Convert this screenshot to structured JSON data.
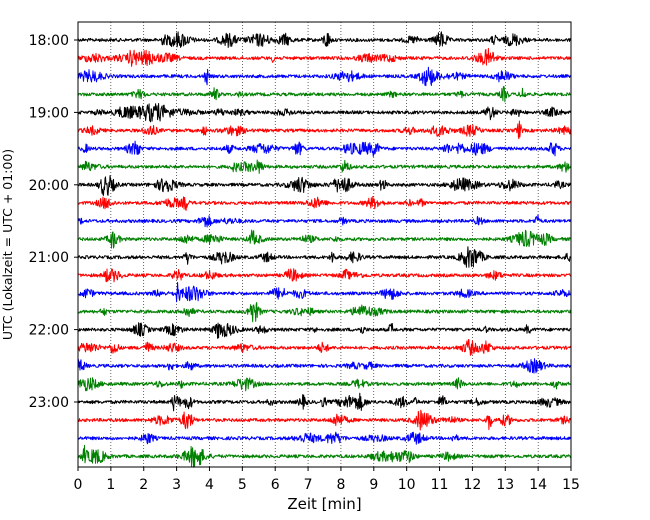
{
  "chart_data": {
    "type": "line",
    "title": "",
    "xlabel": "Zeit  [min]",
    "ylabel": "UTC (Lokalzeit = UTC + 01:00)",
    "xlim": [
      0,
      15
    ],
    "x_ticks": [
      "0",
      "1",
      "2",
      "3",
      "4",
      "5",
      "6",
      "7",
      "8",
      "9",
      "10",
      "11",
      "12",
      "13",
      "14",
      "15"
    ],
    "y_tick_labels": [
      "18:00",
      "19:00",
      "20:00",
      "21:00",
      "22:00",
      "23:00"
    ],
    "grid": "vertical-dotted",
    "series_colors": [
      "#000000",
      "#ff0000",
      "#0000ff",
      "#008000"
    ],
    "rows": [
      {
        "start": "18:00",
        "color": "#000000"
      },
      {
        "start": "18:15",
        "color": "#ff0000"
      },
      {
        "start": "18:30",
        "color": "#0000ff"
      },
      {
        "start": "18:45",
        "color": "#008000"
      },
      {
        "start": "19:00",
        "color": "#000000"
      },
      {
        "start": "19:15",
        "color": "#ff0000"
      },
      {
        "start": "19:30",
        "color": "#0000ff"
      },
      {
        "start": "19:45",
        "color": "#008000"
      },
      {
        "start": "20:00",
        "color": "#000000"
      },
      {
        "start": "20:15",
        "color": "#ff0000"
      },
      {
        "start": "20:30",
        "color": "#0000ff"
      },
      {
        "start": "20:45",
        "color": "#008000"
      },
      {
        "start": "21:00",
        "color": "#000000"
      },
      {
        "start": "21:15",
        "color": "#ff0000"
      },
      {
        "start": "21:30",
        "color": "#0000ff"
      },
      {
        "start": "21:45",
        "color": "#008000"
      },
      {
        "start": "22:00",
        "color": "#000000"
      },
      {
        "start": "22:15",
        "color": "#ff0000"
      },
      {
        "start": "22:30",
        "color": "#0000ff"
      },
      {
        "start": "22:45",
        "color": "#008000"
      },
      {
        "start": "23:00",
        "color": "#000000"
      },
      {
        "start": "23:15",
        "color": "#ff0000"
      },
      {
        "start": "23:30",
        "color": "#0000ff"
      },
      {
        "start": "23:45",
        "color": "#008000"
      }
    ]
  }
}
